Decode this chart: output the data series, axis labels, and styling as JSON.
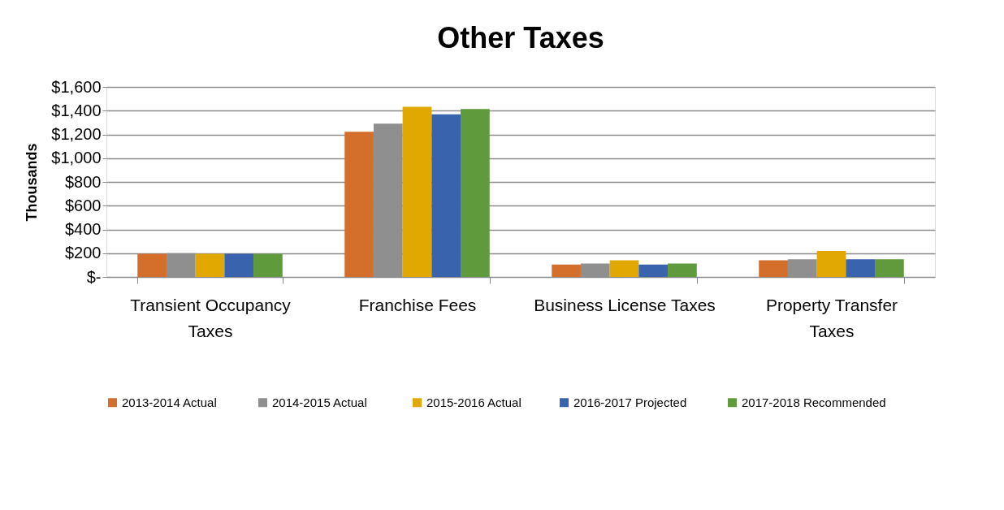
{
  "chart_data": {
    "type": "bar",
    "title": "Other Taxes",
    "ylabel": "Thousands",
    "categories": [
      "Transient Occupancy Taxes",
      "Franchise Fees",
      "Business License Taxes",
      "Property Transfer Taxes"
    ],
    "series": [
      {
        "name": "2013-2014   Actual",
        "color": "#d36e2b",
        "values": [
          195,
          1223,
          104,
          141
        ]
      },
      {
        "name": "2014-2015    Actual",
        "color": "#8f8f8f",
        "values": [
          200,
          1291,
          113,
          148
        ]
      },
      {
        "name": "2015-2016  Actual",
        "color": "#e0a800",
        "values": [
          195,
          1432,
          141,
          219
        ]
      },
      {
        "name": "2016-2017   Projected",
        "color": "#3a63ad",
        "values": [
          195,
          1370,
          104,
          148
        ]
      },
      {
        "name": "2017-2018 Recommended",
        "color": "#5f9a3d",
        "values": [
          195,
          1414,
          113,
          148
        ]
      }
    ],
    "ylim": [
      0,
      1600
    ],
    "yticks": [
      {
        "value": 0,
        "label": "$-"
      },
      {
        "value": 200,
        "label": "$200"
      },
      {
        "value": 400,
        "label": "$400"
      },
      {
        "value": 600,
        "label": "$600"
      },
      {
        "value": 800,
        "label": "$800"
      },
      {
        "value": 1000,
        "label": "$1,000"
      },
      {
        "value": 1200,
        "label": "$1,200"
      },
      {
        "value": 1400,
        "label": "$1,400"
      },
      {
        "value": 1600,
        "label": "$1,600"
      }
    ],
    "grid": "y",
    "legend": "bottom"
  }
}
